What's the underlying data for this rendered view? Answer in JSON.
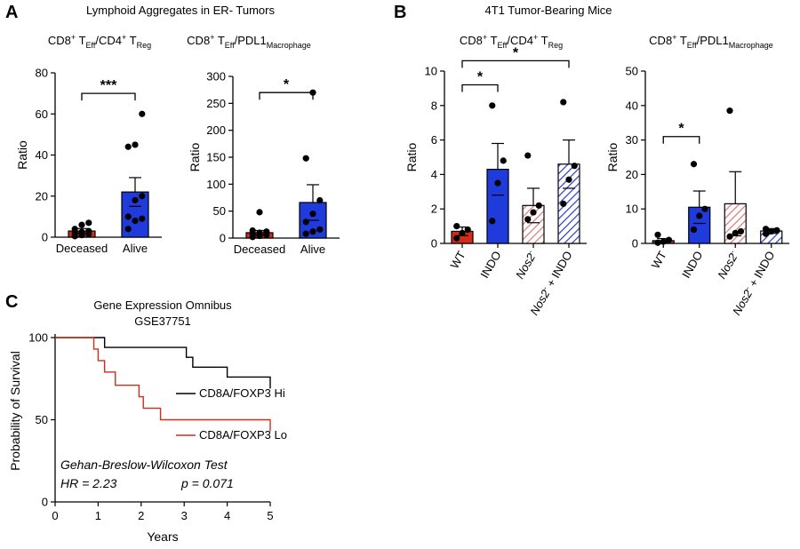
{
  "panels": {
    "A": {
      "letter": "A",
      "title": "Lymphoid Aggregates in ER- Tumors"
    },
    "B": {
      "letter": "B",
      "title": "4T1 Tumor-Bearing Mice"
    },
    "C": {
      "letter": "C",
      "title1": "Gene Expression Omnibus",
      "title2": "GSE37751"
    }
  },
  "colors": {
    "red": "#d62b1b",
    "blue": "#1f3bdc",
    "pinkHatch": "#d97a78",
    "blueHatch": "#2a3cc9"
  },
  "chart_data": [
    {
      "id": "A1",
      "type": "bar",
      "title_parts": [
        "CD8",
        "+",
        " T",
        "Eff",
        "/CD4",
        "+",
        " T",
        "Reg"
      ],
      "ylabel": "Ratio",
      "ylim": [
        0,
        80
      ],
      "yticks": [
        0,
        20,
        40,
        60,
        80
      ],
      "categories": [
        "Deceased",
        "Alive"
      ],
      "values": [
        3,
        22
      ],
      "errors": [
        1.2,
        7
      ],
      "colors": [
        "#d62b1b",
        "#1f3bdc"
      ],
      "hatch": [
        false,
        false
      ],
      "points": [
        [
          0.5,
          1,
          1.5,
          2,
          2.5,
          3,
          4,
          6,
          7
        ],
        [
          4,
          8,
          9,
          10,
          18,
          20,
          44,
          45,
          60
        ]
      ],
      "significance": [
        {
          "from": 0,
          "to": 1,
          "y": 70,
          "label": "***"
        }
      ]
    },
    {
      "id": "A2",
      "type": "bar",
      "title_parts": [
        "CD8",
        "+",
        " T",
        "Eff",
        "/PDL1",
        "",
        "",
        "Macrophage"
      ],
      "ylabel": "Ratio",
      "ylim": [
        0,
        300
      ],
      "yticks": [
        0,
        50,
        100,
        150,
        200,
        250,
        300
      ],
      "categories": [
        "Deceased",
        "Alive"
      ],
      "values": [
        10,
        66
      ],
      "errors": [
        4,
        33
      ],
      "colors": [
        "#d62b1b",
        "#1f3bdc"
      ],
      "hatch": [
        false,
        false
      ],
      "points": [
        [
          2,
          4,
          6,
          8,
          10,
          12,
          14,
          48
        ],
        [
          8,
          12,
          16,
          30,
          45,
          70,
          148,
          270
        ]
      ],
      "significance": [
        {
          "from": 0,
          "to": 1,
          "y": 270,
          "label": "*"
        }
      ]
    },
    {
      "id": "B1",
      "type": "bar",
      "title_parts": [
        "CD8",
        "+",
        " T",
        "Eff",
        "/CD4",
        "+",
        " T",
        "Reg"
      ],
      "ylabel": "Ratio",
      "ylim": [
        0,
        10
      ],
      "yticks": [
        0,
        2,
        4,
        6,
        8,
        10
      ],
      "categories": [
        {
          "main": "WT",
          "sup": "",
          "rest": ""
        },
        {
          "main": "INDO",
          "sup": "",
          "rest": ""
        },
        {
          "main": "Nos2",
          "sup": "-",
          "rest": ""
        },
        {
          "main": "Nos2",
          "sup": "-",
          "rest": " + INDO"
        }
      ],
      "values": [
        0.7,
        4.3,
        2.2,
        4.6
      ],
      "errors": [
        0.25,
        1.5,
        1.0,
        1.4
      ],
      "colors": [
        "#d62b1b",
        "#1f3bdc",
        "#d97a78",
        "#2a3cc9"
      ],
      "hatch": [
        false,
        false,
        true,
        true
      ],
      "points": [
        [
          0.3,
          0.6,
          0.8,
          1.0
        ],
        [
          1.3,
          3.5,
          4.8,
          8.0
        ],
        [
          1.4,
          1.8,
          2.2,
          5.1
        ],
        [
          2.3,
          3.7,
          4.5,
          8.2
        ]
      ],
      "significance": [
        {
          "from": 0,
          "to": 1,
          "y": 9.2,
          "label": "*"
        },
        {
          "from": 0,
          "to": 3,
          "y": 10.6,
          "label": "*"
        }
      ]
    },
    {
      "id": "B2",
      "type": "bar",
      "title_parts": [
        "CD8",
        "+",
        " T",
        "Eff",
        "/PDL1",
        "",
        "",
        "Macrophage"
      ],
      "ylabel": "Ratio",
      "ylim": [
        0,
        50
      ],
      "yticks": [
        0,
        10,
        20,
        30,
        40,
        50
      ],
      "categories": [
        {
          "main": "WT",
          "sup": "",
          "rest": ""
        },
        {
          "main": "INDO",
          "sup": "",
          "rest": ""
        },
        {
          "main": "Nos2",
          "sup": "-",
          "rest": ""
        },
        {
          "main": "Nos2",
          "sup": "-",
          "rest": " + INDO"
        }
      ],
      "values": [
        0.8,
        10.5,
        11.5,
        3.6
      ],
      "errors": [
        0.6,
        4.7,
        9.3,
        0.7
      ],
      "colors": [
        "#d62b1b",
        "#1f3bdc",
        "#d97a78",
        "#2a3cc9"
      ],
      "hatch": [
        false,
        false,
        true,
        true
      ],
      "points": [
        [
          0.2,
          0.5,
          1.0,
          2.5
        ],
        [
          4.0,
          8.0,
          10.0,
          23.0
        ],
        [
          2.0,
          3.0,
          3.5,
          38.5
        ],
        [
          2.8,
          3.5,
          3.8,
          4.2
        ]
      ],
      "significance": [
        {
          "from": 0,
          "to": 1,
          "y": 31,
          "label": "*"
        }
      ]
    },
    {
      "id": "C",
      "type": "line",
      "xlabel": "Years",
      "ylabel": "Probability of Survival",
      "xlim": [
        0,
        5
      ],
      "ylim": [
        0,
        100
      ],
      "xticks": [
        0,
        1,
        2,
        3,
        4,
        5
      ],
      "yticks": [
        0,
        50,
        100
      ],
      "series": [
        {
          "name": "CD8A/FOXP3 Hi",
          "color": "#000000",
          "x": [
            0,
            0.85,
            1.15,
            3.05,
            3.2,
            4.0,
            5.0
          ],
          "y": [
            100,
            100,
            94,
            88,
            82,
            76,
            69
          ]
        },
        {
          "name": "CD8A/FOXP3 Lo",
          "color": "#d62b1b",
          "x": [
            0,
            0.8,
            0.9,
            1.0,
            1.15,
            1.4,
            1.95,
            2.05,
            2.45,
            5.0
          ],
          "y": [
            100,
            100,
            93,
            86,
            79,
            71,
            64,
            57,
            50,
            43
          ]
        }
      ],
      "test_name": "Gehan-Breslow-Wilcoxon Test",
      "hr": "HR = 2.23",
      "p": "p  = 0.071"
    }
  ]
}
